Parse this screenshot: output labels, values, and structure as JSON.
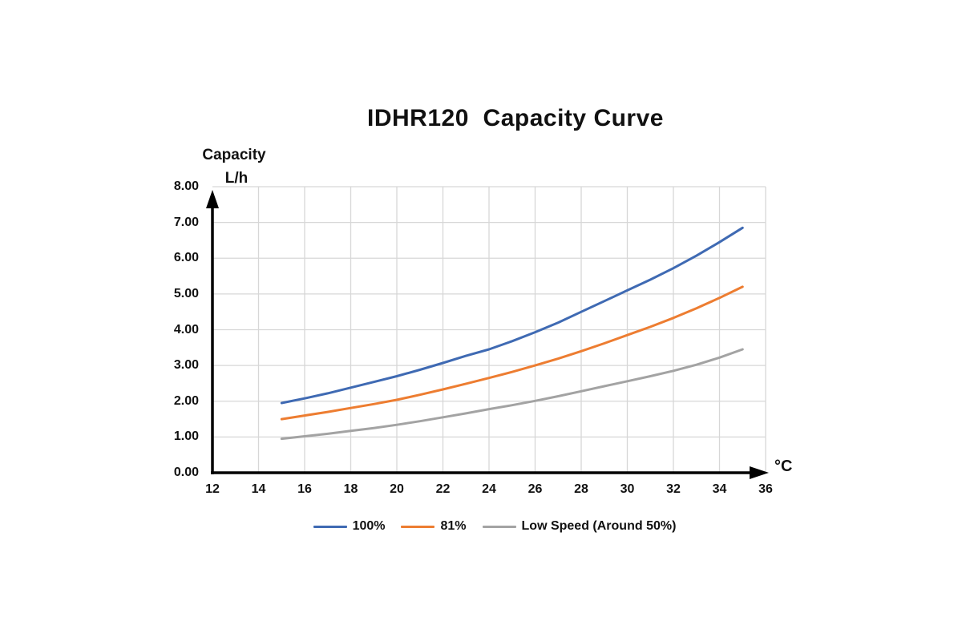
{
  "chart_data": {
    "type": "line",
    "title": "IDHR120  Capacity Curve",
    "ylabel": "Capacity",
    "ylabel_unit": "L/h",
    "xlabel_unit": "°C",
    "xlim": [
      12,
      36
    ],
    "ylim": [
      0,
      8
    ],
    "xticks": [
      12,
      14,
      16,
      18,
      20,
      22,
      24,
      26,
      28,
      30,
      32,
      34,
      36
    ],
    "ytick_labels": [
      "0.00",
      "1.00",
      "2.00",
      "3.00",
      "4.00",
      "5.00",
      "6.00",
      "7.00",
      "8.00"
    ],
    "grid": {
      "show": true,
      "x_step": 2,
      "y_step": 1,
      "color": "#d7d7d7"
    },
    "axis_color": "#000000",
    "legend_position": "bottom-center",
    "x": [
      15,
      16,
      17,
      18,
      19,
      20,
      21,
      22,
      23,
      24,
      25,
      26,
      27,
      28,
      29,
      30,
      31,
      32,
      33,
      34,
      35
    ],
    "series": [
      {
        "name": "100%",
        "color": "#3f6ab3",
        "values": [
          1.95,
          2.08,
          2.22,
          2.38,
          2.54,
          2.7,
          2.88,
          3.07,
          3.27,
          3.45,
          3.68,
          3.93,
          4.2,
          4.5,
          4.8,
          5.1,
          5.4,
          5.72,
          6.07,
          6.45,
          6.85
        ]
      },
      {
        "name": "81%",
        "color": "#ed7d31",
        "values": [
          1.5,
          1.6,
          1.7,
          1.81,
          1.92,
          2.04,
          2.18,
          2.33,
          2.49,
          2.65,
          2.82,
          3.0,
          3.19,
          3.4,
          3.62,
          3.85,
          4.08,
          4.33,
          4.6,
          4.89,
          5.2
        ]
      },
      {
        "name": "Low Speed (Around 50%)",
        "color": "#a3a3a3",
        "values": [
          0.95,
          1.02,
          1.09,
          1.17,
          1.25,
          1.34,
          1.44,
          1.55,
          1.66,
          1.78,
          1.89,
          2.01,
          2.14,
          2.28,
          2.42,
          2.56,
          2.7,
          2.85,
          3.02,
          3.22,
          3.45
        ]
      }
    ]
  }
}
